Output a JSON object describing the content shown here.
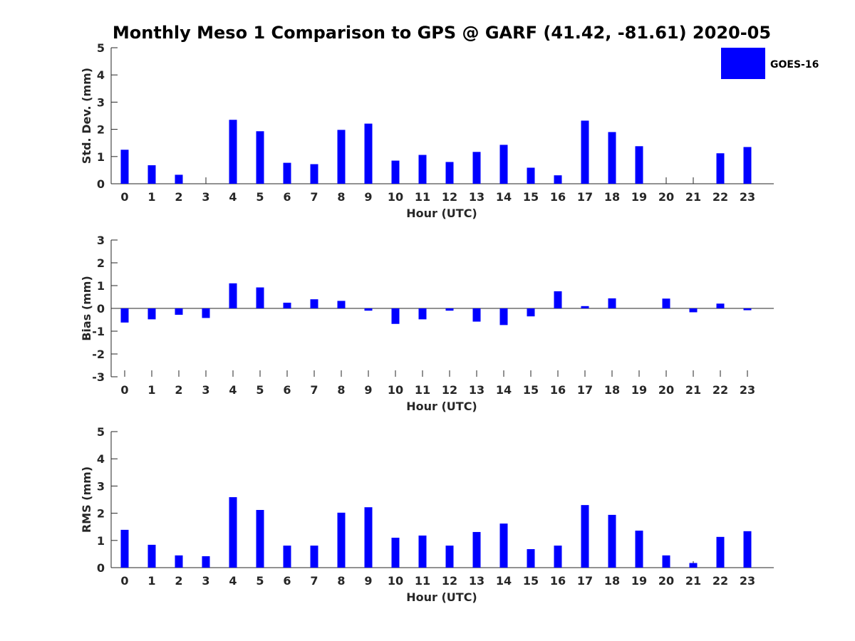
{
  "title": "Monthly Meso 1 Comparison to GPS @ GARF (41.42, -81.61) 2020-05",
  "legend": {
    "label": "GOES-16",
    "color": "#0000ff",
    "placement": "top-right"
  },
  "chart_data": [
    {
      "type": "bar",
      "ylabel": "Std. Dev. (mm)",
      "xlabel": "Hour (UTC)",
      "ylim": [
        0,
        5
      ],
      "yticks": [
        0,
        1,
        2,
        3,
        4,
        5
      ],
      "categories": [
        "0",
        "1",
        "2",
        "3",
        "4",
        "5",
        "6",
        "7",
        "8",
        "9",
        "10",
        "11",
        "12",
        "13",
        "14",
        "15",
        "16",
        "17",
        "18",
        "19",
        "20",
        "21",
        "22",
        "23"
      ],
      "values": [
        1.25,
        0.68,
        0.33,
        0,
        2.35,
        1.93,
        0.77,
        0.72,
        1.98,
        2.21,
        0.85,
        1.06,
        0.8,
        1.17,
        1.43,
        0.59,
        0.31,
        2.32,
        1.9,
        1.38,
        0,
        0,
        1.12,
        1.35
      ],
      "color": "#0000ff"
    },
    {
      "type": "bar",
      "ylabel": "Bias (mm)",
      "xlabel": "Hour (UTC)",
      "ylim": [
        -3,
        3
      ],
      "yticks": [
        -3,
        -2,
        -1,
        0,
        1,
        2,
        3
      ],
      "categories": [
        "0",
        "1",
        "2",
        "3",
        "4",
        "5",
        "6",
        "7",
        "8",
        "9",
        "10",
        "11",
        "12",
        "13",
        "14",
        "15",
        "16",
        "17",
        "18",
        "19",
        "20",
        "21",
        "22",
        "23"
      ],
      "values": [
        -0.62,
        -0.48,
        -0.28,
        -0.42,
        1.1,
        0.92,
        0.25,
        0.4,
        0.33,
        -0.1,
        -0.68,
        -0.48,
        -0.1,
        -0.58,
        -0.73,
        -0.35,
        0.75,
        0.1,
        0.44,
        0,
        0.43,
        -0.17,
        0.21,
        -0.08
      ],
      "color": "#0000ff"
    },
    {
      "type": "bar",
      "ylabel": "RMS (mm)",
      "xlabel": "Hour (UTC)",
      "ylim": [
        0,
        5
      ],
      "yticks": [
        0,
        1,
        2,
        3,
        4,
        5
      ],
      "categories": [
        "0",
        "1",
        "2",
        "3",
        "4",
        "5",
        "6",
        "7",
        "8",
        "9",
        "10",
        "11",
        "12",
        "13",
        "14",
        "15",
        "16",
        "17",
        "18",
        "19",
        "20",
        "21",
        "22",
        "23"
      ],
      "values": [
        1.39,
        0.84,
        0.45,
        0.42,
        2.59,
        2.12,
        0.81,
        0.81,
        2.02,
        2.22,
        1.1,
        1.18,
        0.81,
        1.31,
        1.62,
        0.68,
        0.81,
        2.3,
        1.94,
        1.36,
        0.45,
        0.17,
        1.13,
        1.34
      ],
      "color": "#0000ff"
    }
  ]
}
